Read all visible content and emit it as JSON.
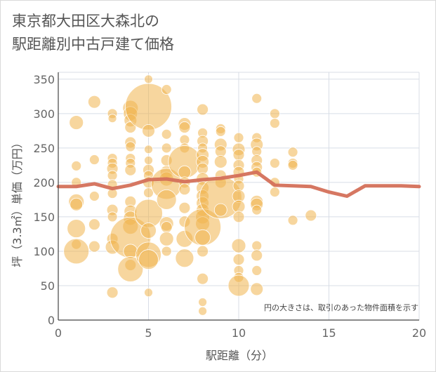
{
  "title_lines": [
    "東京都大田区大森北の",
    "駅距離別中古戸建て価格"
  ],
  "colors": {
    "bubble": "#f0b44f",
    "line": "#d4705a",
    "grid": "#d8dde6",
    "axis": "#444444"
  },
  "chart_data": {
    "type": "scatter",
    "xlabel": "駅距離（分）",
    "ylabel": "坪（3.3㎡）単価（万円）",
    "xlim": [
      0,
      20
    ],
    "ylim": [
      0,
      360
    ],
    "xticks": [
      "0",
      "5",
      "10",
      "15",
      "20"
    ],
    "yticks": [
      "0",
      "50",
      "100",
      "150",
      "200",
      "250",
      "300",
      "350"
    ],
    "annotation": "円の大きさは、取引のあった物件面積を示す",
    "line": {
      "x": [
        0,
        1,
        2,
        3,
        4,
        5,
        6,
        7,
        8,
        9,
        10,
        11,
        12,
        13,
        14,
        15,
        16,
        17,
        18,
        19,
        20
      ],
      "y": [
        194,
        194,
        198,
        191,
        196,
        204,
        205,
        201,
        204,
        206,
        210,
        215,
        196,
        195,
        194,
        186,
        180,
        195,
        195,
        195,
        194
      ]
    },
    "bubbles": [
      {
        "x": 1,
        "y": 287,
        "r": 10
      },
      {
        "x": 1,
        "y": 224,
        "r": 7
      },
      {
        "x": 1,
        "y": 200,
        "r": 7
      },
      {
        "x": 1,
        "y": 172,
        "r": 11
      },
      {
        "x": 1,
        "y": 168,
        "r": 9
      },
      {
        "x": 1,
        "y": 133,
        "r": 13
      },
      {
        "x": 1,
        "y": 110,
        "r": 7
      },
      {
        "x": 1,
        "y": 100,
        "r": 18
      },
      {
        "x": 2,
        "y": 317,
        "r": 9
      },
      {
        "x": 2,
        "y": 233,
        "r": 7
      },
      {
        "x": 2,
        "y": 180,
        "r": 7
      },
      {
        "x": 2,
        "y": 139,
        "r": 8
      },
      {
        "x": 2,
        "y": 107,
        "r": 8
      },
      {
        "x": 3,
        "y": 300,
        "r": 7
      },
      {
        "x": 3,
        "y": 293,
        "r": 6
      },
      {
        "x": 3,
        "y": 235,
        "r": 7
      },
      {
        "x": 3,
        "y": 228,
        "r": 7
      },
      {
        "x": 3,
        "y": 220,
        "r": 8
      },
      {
        "x": 3,
        "y": 210,
        "r": 7
      },
      {
        "x": 3,
        "y": 197,
        "r": 7
      },
      {
        "x": 3,
        "y": 184,
        "r": 7
      },
      {
        "x": 3,
        "y": 160,
        "r": 8
      },
      {
        "x": 3,
        "y": 150,
        "r": 7
      },
      {
        "x": 3,
        "y": 118,
        "r": 8
      },
      {
        "x": 3,
        "y": 106,
        "r": 10
      },
      {
        "x": 3,
        "y": 40,
        "r": 8
      },
      {
        "x": 4,
        "y": 308,
        "r": 11
      },
      {
        "x": 4,
        "y": 300,
        "r": 10
      },
      {
        "x": 4,
        "y": 290,
        "r": 9
      },
      {
        "x": 4,
        "y": 280,
        "r": 8
      },
      {
        "x": 4,
        "y": 258,
        "r": 8
      },
      {
        "x": 4,
        "y": 252,
        "r": 7
      },
      {
        "x": 4,
        "y": 235,
        "r": 7
      },
      {
        "x": 4,
        "y": 228,
        "r": 7
      },
      {
        "x": 4,
        "y": 218,
        "r": 8
      },
      {
        "x": 4,
        "y": 172,
        "r": 8
      },
      {
        "x": 4,
        "y": 158,
        "r": 9
      },
      {
        "x": 4,
        "y": 148,
        "r": 10
      },
      {
        "x": 4,
        "y": 136,
        "r": 11
      },
      {
        "x": 4,
        "y": 120,
        "r": 29
      },
      {
        "x": 4,
        "y": 100,
        "r": 10
      },
      {
        "x": 4,
        "y": 80,
        "r": 8
      },
      {
        "x": 4,
        "y": 74,
        "r": 18
      },
      {
        "x": 5,
        "y": 350,
        "r": 6
      },
      {
        "x": 5,
        "y": 310,
        "r": 33
      },
      {
        "x": 5,
        "y": 275,
        "r": 9
      },
      {
        "x": 5,
        "y": 248,
        "r": 6
      },
      {
        "x": 5,
        "y": 232,
        "r": 6
      },
      {
        "x": 5,
        "y": 218,
        "r": 8
      },
      {
        "x": 5,
        "y": 210,
        "r": 7
      },
      {
        "x": 5,
        "y": 200,
        "r": 8
      },
      {
        "x": 5,
        "y": 185,
        "r": 7
      },
      {
        "x": 5,
        "y": 155,
        "r": 20
      },
      {
        "x": 5,
        "y": 130,
        "r": 11
      },
      {
        "x": 5,
        "y": 95,
        "r": 18
      },
      {
        "x": 5,
        "y": 88,
        "r": 14
      },
      {
        "x": 5,
        "y": 40,
        "r": 6
      },
      {
        "x": 6,
        "y": 335,
        "r": 7
      },
      {
        "x": 6,
        "y": 270,
        "r": 7
      },
      {
        "x": 6,
        "y": 250,
        "r": 7
      },
      {
        "x": 6,
        "y": 232,
        "r": 8
      },
      {
        "x": 6,
        "y": 215,
        "r": 9
      },
      {
        "x": 6,
        "y": 205,
        "r": 10
      },
      {
        "x": 6,
        "y": 198,
        "r": 22
      },
      {
        "x": 6,
        "y": 175,
        "r": 14
      },
      {
        "x": 6,
        "y": 140,
        "r": 10
      },
      {
        "x": 6,
        "y": 135,
        "r": 8
      },
      {
        "x": 6,
        "y": 118,
        "r": 10
      },
      {
        "x": 6,
        "y": 100,
        "r": 7
      },
      {
        "x": 7,
        "y": 285,
        "r": 9
      },
      {
        "x": 7,
        "y": 280,
        "r": 8
      },
      {
        "x": 7,
        "y": 262,
        "r": 7
      },
      {
        "x": 7,
        "y": 250,
        "r": 7
      },
      {
        "x": 7,
        "y": 230,
        "r": 23
      },
      {
        "x": 7,
        "y": 215,
        "r": 9
      },
      {
        "x": 7,
        "y": 200,
        "r": 8
      },
      {
        "x": 7,
        "y": 190,
        "r": 8
      },
      {
        "x": 7,
        "y": 163,
        "r": 8
      },
      {
        "x": 7,
        "y": 143,
        "r": 8
      },
      {
        "x": 7,
        "y": 118,
        "r": 12
      },
      {
        "x": 7,
        "y": 90,
        "r": 13
      },
      {
        "x": 8,
        "y": 306,
        "r": 8
      },
      {
        "x": 8,
        "y": 272,
        "r": 7
      },
      {
        "x": 8,
        "y": 260,
        "r": 8
      },
      {
        "x": 8,
        "y": 250,
        "r": 7
      },
      {
        "x": 8,
        "y": 240,
        "r": 9
      },
      {
        "x": 8,
        "y": 230,
        "r": 9
      },
      {
        "x": 8,
        "y": 220,
        "r": 8
      },
      {
        "x": 8,
        "y": 205,
        "r": 9
      },
      {
        "x": 8,
        "y": 192,
        "r": 9
      },
      {
        "x": 8,
        "y": 180,
        "r": 9
      },
      {
        "x": 8,
        "y": 170,
        "r": 9
      },
      {
        "x": 8,
        "y": 160,
        "r": 9
      },
      {
        "x": 8,
        "y": 150,
        "r": 10
      },
      {
        "x": 8,
        "y": 140,
        "r": 10
      },
      {
        "x": 8,
        "y": 135,
        "r": 26
      },
      {
        "x": 8,
        "y": 120,
        "r": 11
      },
      {
        "x": 8,
        "y": 100,
        "r": 8
      },
      {
        "x": 8,
        "y": 60,
        "r": 8
      },
      {
        "x": 8,
        "y": 26,
        "r": 6
      },
      {
        "x": 8,
        "y": 13,
        "r": 6
      },
      {
        "x": 9,
        "y": 278,
        "r": 7
      },
      {
        "x": 9,
        "y": 274,
        "r": 7
      },
      {
        "x": 9,
        "y": 255,
        "r": 9
      },
      {
        "x": 9,
        "y": 245,
        "r": 8
      },
      {
        "x": 9,
        "y": 230,
        "r": 9
      },
      {
        "x": 9,
        "y": 210,
        "r": 8
      },
      {
        "x": 9,
        "y": 200,
        "r": 8
      },
      {
        "x": 9,
        "y": 178,
        "r": 30
      },
      {
        "x": 9,
        "y": 160,
        "r": 9
      },
      {
        "x": 10,
        "y": 265,
        "r": 7
      },
      {
        "x": 10,
        "y": 248,
        "r": 9
      },
      {
        "x": 10,
        "y": 240,
        "r": 8
      },
      {
        "x": 10,
        "y": 225,
        "r": 8
      },
      {
        "x": 10,
        "y": 215,
        "r": 8
      },
      {
        "x": 10,
        "y": 205,
        "r": 7
      },
      {
        "x": 10,
        "y": 195,
        "r": 8
      },
      {
        "x": 10,
        "y": 180,
        "r": 9
      },
      {
        "x": 10,
        "y": 165,
        "r": 9
      },
      {
        "x": 10,
        "y": 150,
        "r": 8
      },
      {
        "x": 10,
        "y": 108,
        "r": 10
      },
      {
        "x": 10,
        "y": 88,
        "r": 8
      },
      {
        "x": 10,
        "y": 72,
        "r": 7
      },
      {
        "x": 10,
        "y": 62,
        "r": 7
      },
      {
        "x": 10,
        "y": 50,
        "r": 15
      },
      {
        "x": 11,
        "y": 322,
        "r": 7
      },
      {
        "x": 11,
        "y": 265,
        "r": 7
      },
      {
        "x": 11,
        "y": 255,
        "r": 9
      },
      {
        "x": 11,
        "y": 245,
        "r": 7
      },
      {
        "x": 11,
        "y": 232,
        "r": 8
      },
      {
        "x": 11,
        "y": 222,
        "r": 8
      },
      {
        "x": 11,
        "y": 215,
        "r": 7
      },
      {
        "x": 11,
        "y": 172,
        "r": 9
      },
      {
        "x": 11,
        "y": 168,
        "r": 9
      },
      {
        "x": 11,
        "y": 160,
        "r": 7
      },
      {
        "x": 11,
        "y": 108,
        "r": 7
      },
      {
        "x": 11,
        "y": 94,
        "r": 8
      },
      {
        "x": 11,
        "y": 72,
        "r": 7
      },
      {
        "x": 11,
        "y": 45,
        "r": 9
      },
      {
        "x": 12,
        "y": 300,
        "r": 7
      },
      {
        "x": 12,
        "y": 286,
        "r": 7
      },
      {
        "x": 12,
        "y": 228,
        "r": 7
      },
      {
        "x": 12,
        "y": 200,
        "r": 7
      },
      {
        "x": 12,
        "y": 186,
        "r": 7
      },
      {
        "x": 13,
        "y": 244,
        "r": 7
      },
      {
        "x": 13,
        "y": 228,
        "r": 7
      },
      {
        "x": 13,
        "y": 225,
        "r": 7
      },
      {
        "x": 13,
        "y": 145,
        "r": 7
      },
      {
        "x": 14,
        "y": 152,
        "r": 8
      }
    ]
  }
}
